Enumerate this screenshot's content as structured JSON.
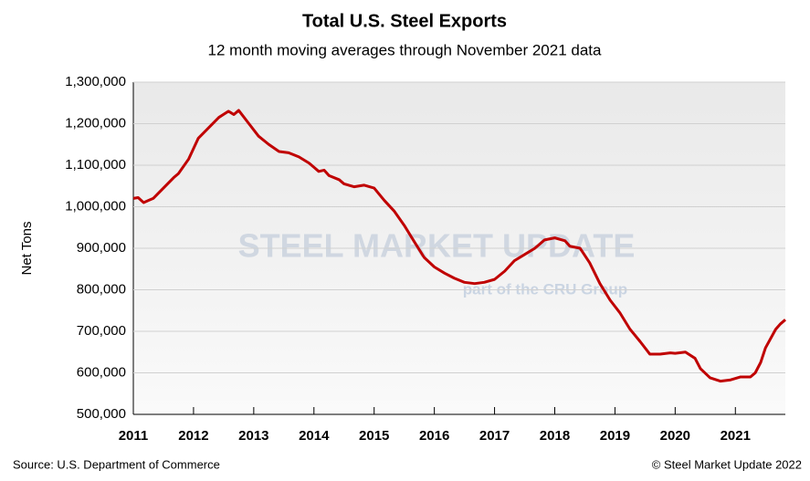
{
  "chart_data": {
    "type": "line",
    "title": "Total U.S. Steel Exports",
    "subtitle": "12 month moving averages through November  2021 data",
    "y_label": "Net Tons",
    "source": "Source: U.S. Department of Commerce",
    "copyright": "© Steel Market Update 2022",
    "watermark": "STEEL MARKET UPDATE",
    "watermark_sub": "part of the CRU Group",
    "grid": true,
    "xlim": [
      2011,
      2021.83
    ],
    "xticks": [
      2011,
      2012,
      2013,
      2014,
      2015,
      2016,
      2017,
      2018,
      2019,
      2020,
      2021
    ],
    "ylim": [
      500000,
      1300000
    ],
    "yticks": [
      {
        "value": 500000,
        "label": "500,000"
      },
      {
        "value": 600000,
        "label": "600,000"
      },
      {
        "value": 700000,
        "label": "700,000"
      },
      {
        "value": 800000,
        "label": "800,000"
      },
      {
        "value": 900000,
        "label": "900,000"
      },
      {
        "value": 1000000,
        "label": "1,000,000"
      },
      {
        "value": 1100000,
        "label": "1,100,000"
      },
      {
        "value": 1200000,
        "label": "1,200,000"
      },
      {
        "value": 1300000,
        "label": "1,300,000"
      }
    ],
    "x": [
      2011.0,
      2011.08,
      2011.17,
      2011.25,
      2011.33,
      2011.5,
      2011.67,
      2011.75,
      2011.92,
      2012.08,
      2012.25,
      2012.42,
      2012.58,
      2012.67,
      2012.75,
      2012.92,
      2013.08,
      2013.25,
      2013.42,
      2013.58,
      2013.75,
      2013.92,
      2014.0,
      2014.08,
      2014.17,
      2014.25,
      2014.42,
      2014.5,
      2014.67,
      2014.83,
      2015.0,
      2015.17,
      2015.33,
      2015.5,
      2015.67,
      2015.83,
      2016.0,
      2016.17,
      2016.33,
      2016.5,
      2016.67,
      2016.83,
      2017.0,
      2017.17,
      2017.33,
      2017.5,
      2017.67,
      2017.83,
      2018.0,
      2018.17,
      2018.25,
      2018.42,
      2018.58,
      2018.75,
      2018.92,
      2019.08,
      2019.25,
      2019.42,
      2019.58,
      2019.75,
      2019.92,
      2020.0,
      2020.17,
      2020.33,
      2020.42,
      2020.58,
      2020.75,
      2020.92,
      2021.08,
      2021.25,
      2021.33,
      2021.42,
      2021.5,
      2021.67,
      2021.75,
      2021.83
    ],
    "series": [
      {
        "name": "Total U.S. Steel Exports",
        "color": "#c00000",
        "values": [
          1020000,
          1022000,
          1010000,
          1015000,
          1020000,
          1045000,
          1070000,
          1080000,
          1115000,
          1165000,
          1190000,
          1215000,
          1230000,
          1222000,
          1232000,
          1200000,
          1170000,
          1150000,
          1133000,
          1130000,
          1120000,
          1105000,
          1095000,
          1085000,
          1088000,
          1075000,
          1065000,
          1055000,
          1048000,
          1052000,
          1045000,
          1015000,
          990000,
          955000,
          915000,
          878000,
          855000,
          840000,
          828000,
          818000,
          815000,
          818000,
          825000,
          845000,
          870000,
          885000,
          900000,
          920000,
          925000,
          918000,
          905000,
          900000,
          865000,
          815000,
          775000,
          745000,
          705000,
          675000,
          645000,
          645000,
          648000,
          647000,
          650000,
          635000,
          610000,
          588000,
          580000,
          583000,
          590000,
          590000,
          600000,
          625000,
          660000,
          705000,
          718000,
          728000
        ]
      }
    ]
  }
}
